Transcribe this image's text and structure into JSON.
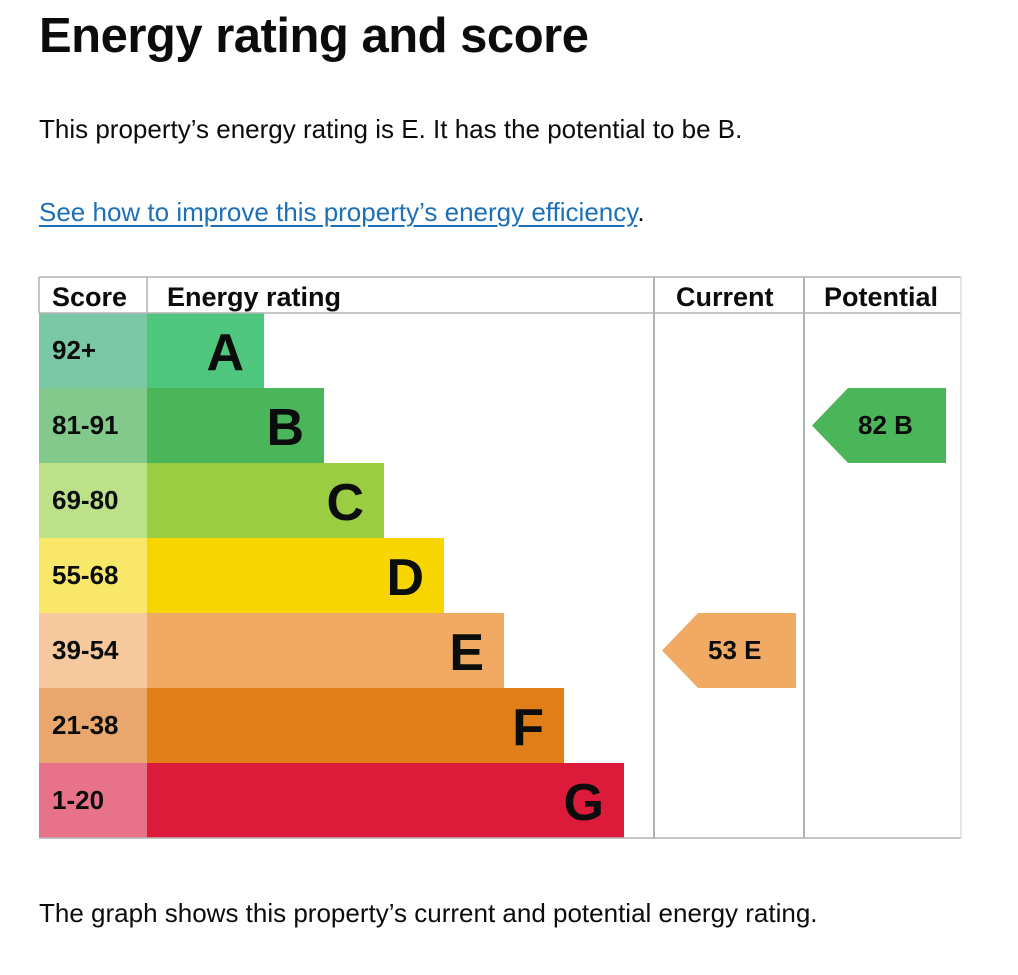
{
  "page": {
    "title": "Energy rating and score",
    "intro": "This property’s energy rating is E. It has the potential to be B.",
    "link_text": "See how to improve this property’s energy efficiency",
    "link_suffix": ".",
    "caption": "The graph shows this property’s current and potential energy rating."
  },
  "chart_data": {
    "type": "bar",
    "headers": {
      "score": "Score",
      "rating": "Energy rating",
      "current": "Current",
      "potential": "Potential"
    },
    "bands": [
      {
        "letter": "A",
        "range": "92+",
        "color": "#50c77f",
        "score_color": "#7bc8a6"
      },
      {
        "letter": "B",
        "range": "81-91",
        "color": "#4bb55a",
        "score_color": "#82c98b"
      },
      {
        "letter": "C",
        "range": "69-80",
        "color": "#9acd42",
        "score_color": "#bde189"
      },
      {
        "letter": "D",
        "range": "55-68",
        "color": "#f7d500",
        "score_color": "#f9e76a"
      },
      {
        "letter": "E",
        "range": "39-54",
        "color": "#f0aa63",
        "score_color": "#f5c89d"
      },
      {
        "letter": "F",
        "range": "21-38",
        "color": "#e07f18",
        "score_color": "#eaa76d"
      },
      {
        "letter": "G",
        "range": "1-20",
        "color": "#dc1a3a",
        "score_color": "#e7728a"
      }
    ],
    "current": {
      "score": 53,
      "rating": "E",
      "label": "53  E",
      "color": "#f0aa63"
    },
    "potential": {
      "score": 82,
      "rating": "B",
      "label": "82  B",
      "color": "#4bb55a"
    }
  }
}
